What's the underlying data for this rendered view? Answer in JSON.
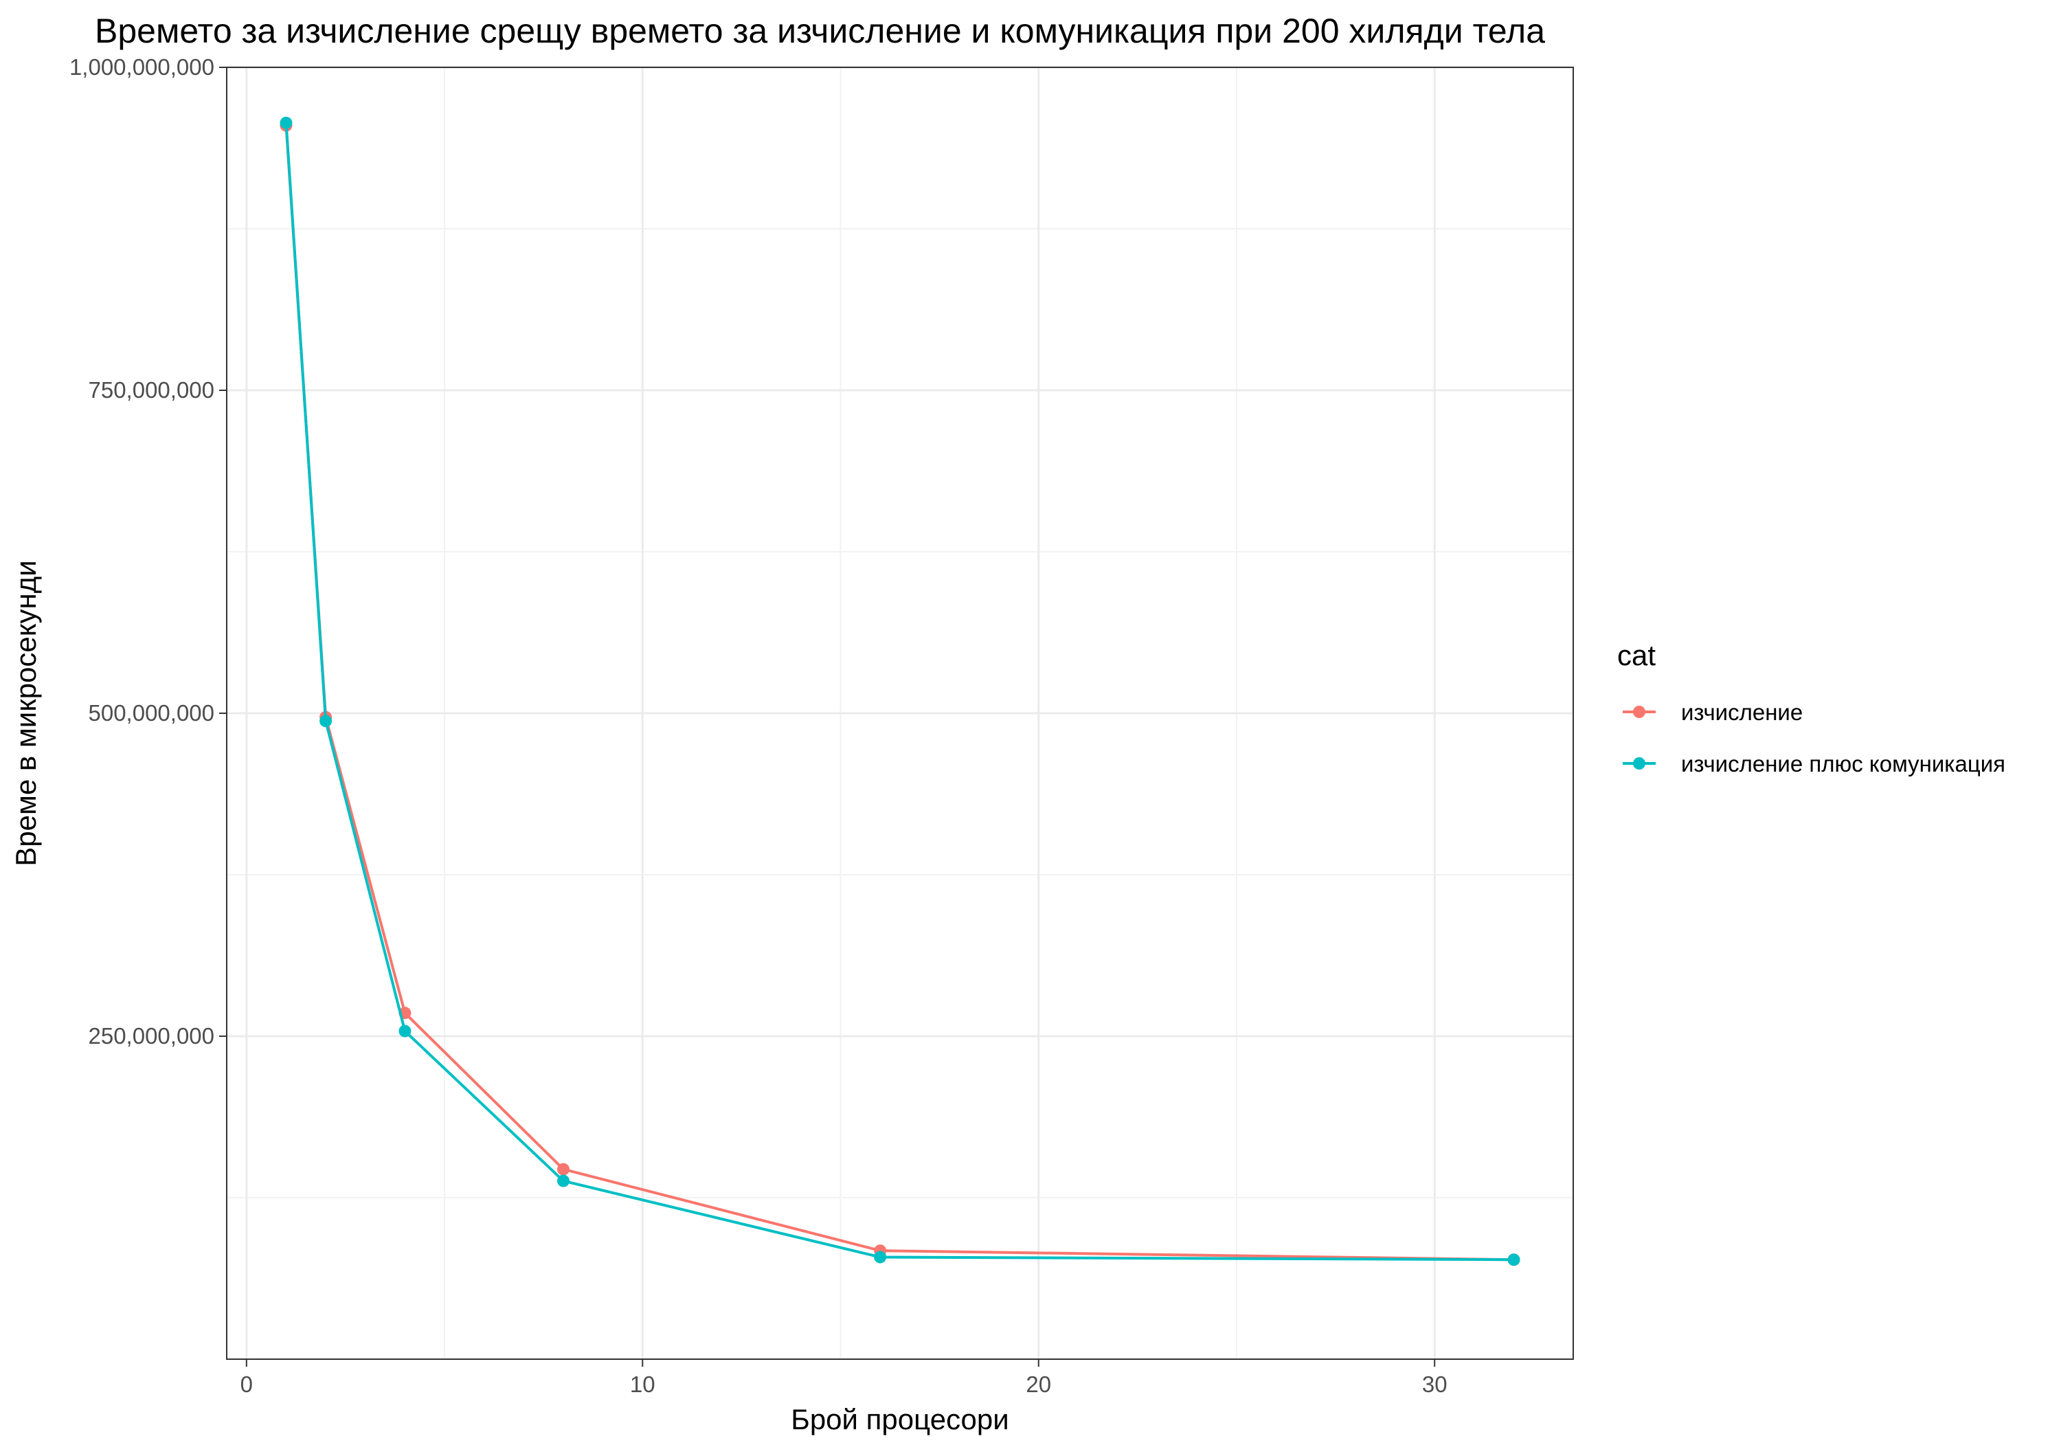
{
  "chart_data": {
    "type": "line",
    "title": "Времето за изчисление срещу времето за изчисление и комуникация при 200 хиляди тела",
    "xlabel": "Брой процесори",
    "ylabel": "Време в микросекунди",
    "xlim": [
      -0.5,
      33.5
    ],
    "ylim": [
      0,
      1000000000
    ],
    "x_ticks": [
      0,
      10,
      20,
      30
    ],
    "x_tick_labels": [
      "0",
      "10",
      "20",
      "30"
    ],
    "y_ticks": [
      250000000,
      500000000,
      750000000,
      1000000000
    ],
    "y_tick_labels": [
      "250,000,000",
      "500,000,000",
      "750,000,000",
      "1,000,000,000"
    ],
    "grid": true,
    "legend": {
      "title": "cat",
      "position": "right"
    },
    "series": [
      {
        "name": "изчисление",
        "color": "#F8766D",
        "x": [
          1,
          2,
          4,
          8,
          16,
          32
        ],
        "y": [
          955000000,
          497000000,
          268000000,
          147000000,
          84000000,
          77000000
        ]
      },
      {
        "name": "изчисление плюс комуникация",
        "color": "#00BFC4",
        "x": [
          1,
          2,
          4,
          8,
          16,
          32
        ],
        "y": [
          957000000,
          494000000,
          254000000,
          138000000,
          79000000,
          77000000
        ]
      }
    ]
  }
}
